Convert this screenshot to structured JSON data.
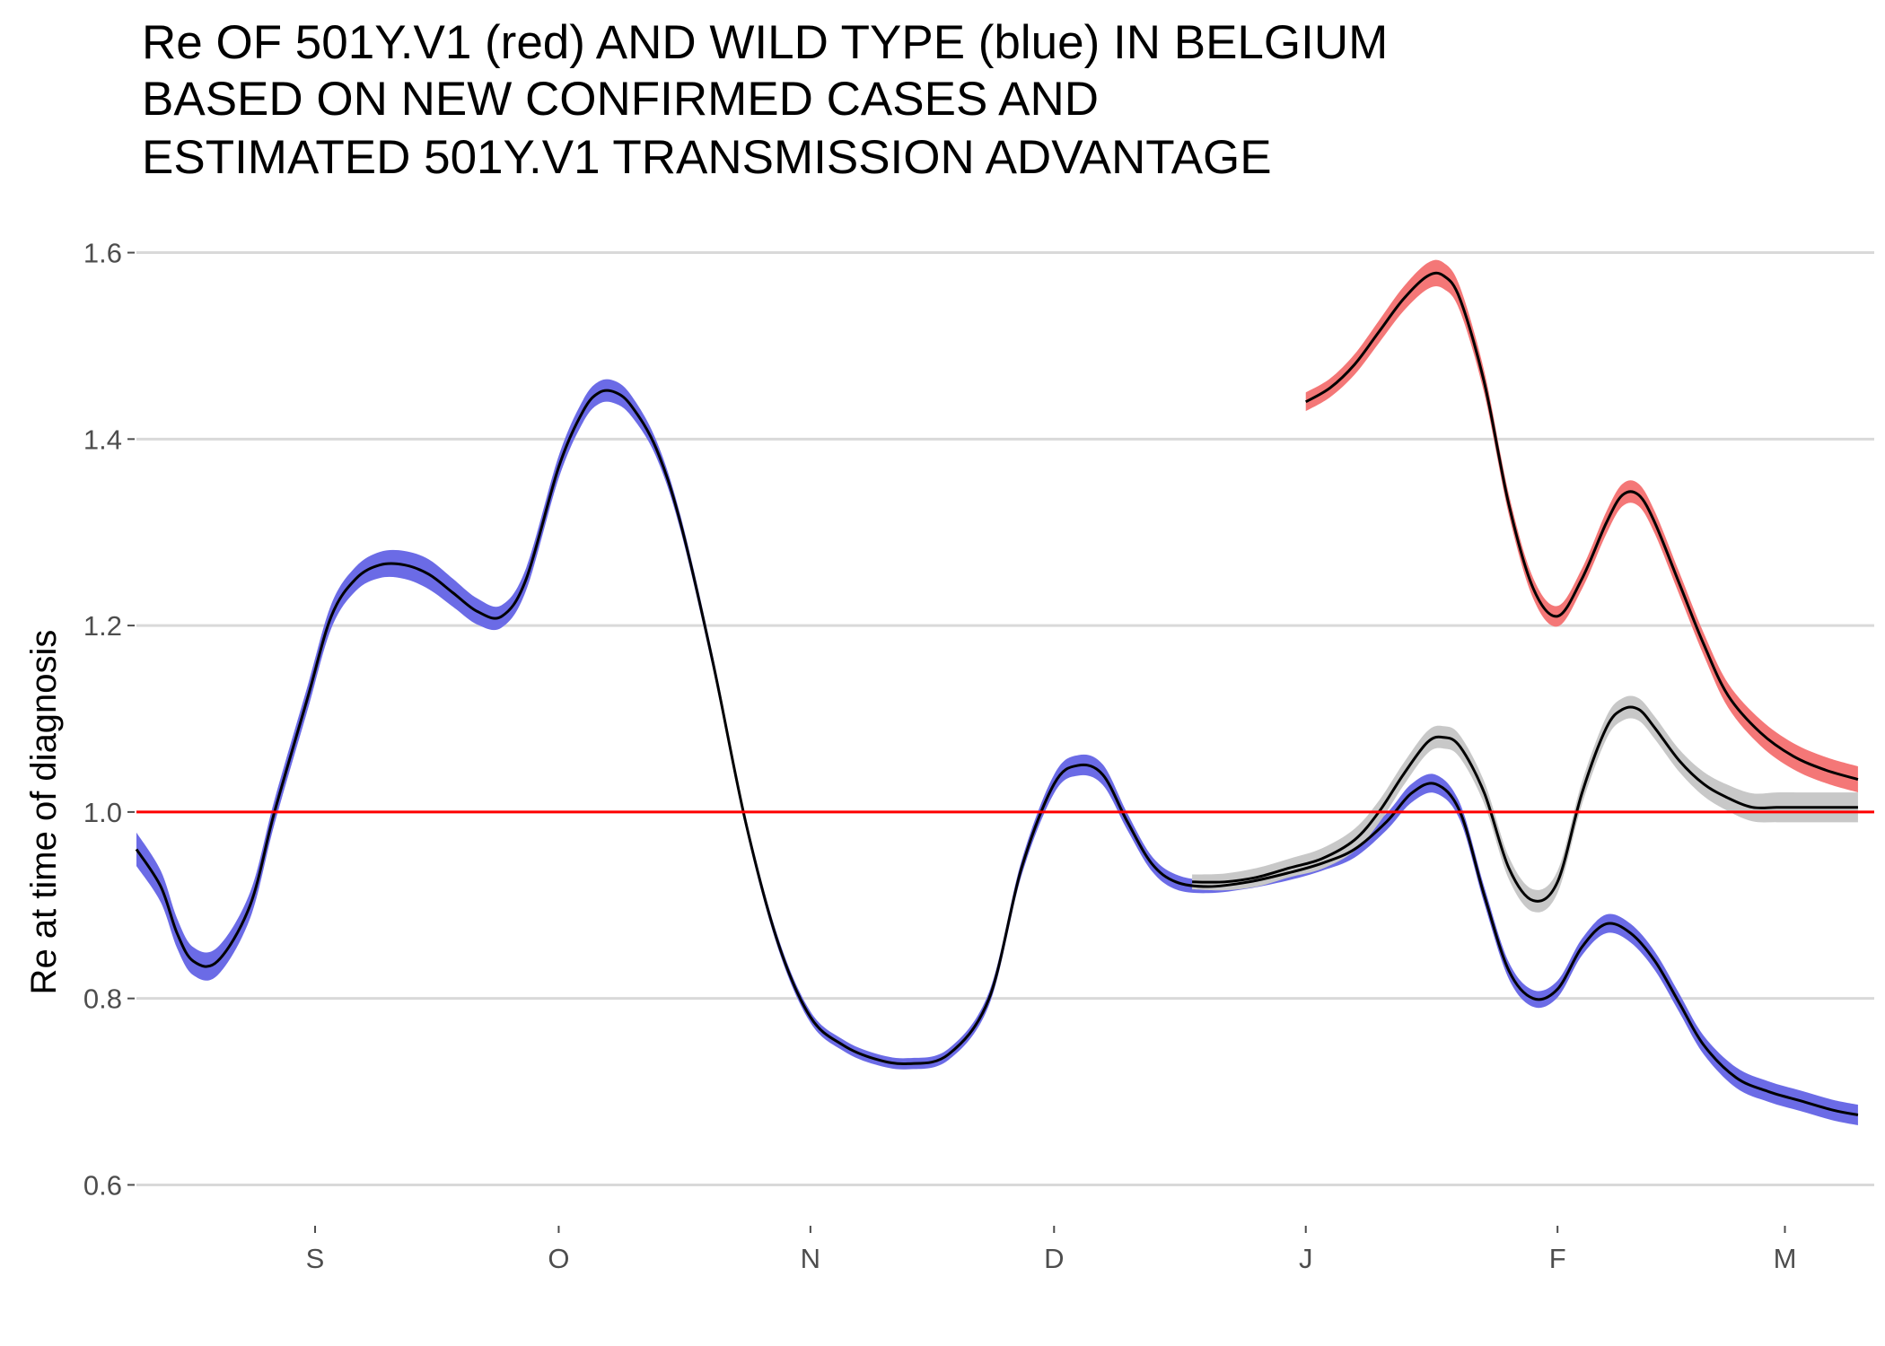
{
  "chart_data": {
    "type": "line",
    "title": [
      "Re OF 501Y.V1 (red) AND WILD TYPE (blue) IN BELGIUM",
      "BASED ON NEW CONFIRMED CASES AND",
      "ESTIMATED 501Y.V1 TRANSMISSION ADVANTAGE"
    ],
    "xlabel": "",
    "ylabel": "Re at time of diagnosis",
    "xlim": [
      "2020-08-10",
      "2021-03-12"
    ],
    "ylim": [
      0.56,
      1.64
    ],
    "x_ticks": [
      {
        "date": "2020-09-01",
        "label": "S"
      },
      {
        "date": "2020-10-01",
        "label": "O"
      },
      {
        "date": "2020-11-01",
        "label": "N"
      },
      {
        "date": "2020-12-01",
        "label": "D"
      },
      {
        "date": "2021-01-01",
        "label": "J"
      },
      {
        "date": "2021-02-01",
        "label": "F"
      },
      {
        "date": "2021-03-01",
        "label": "M"
      }
    ],
    "y_ticks": [
      0.6,
      0.8,
      1.0,
      1.2,
      1.4,
      1.6
    ],
    "y_tick_labels": [
      "0.6",
      "0.8",
      "1.0",
      "1.2",
      "1.4",
      "1.6"
    ],
    "grid": "horizontal major",
    "reference_line": {
      "y": 1.0,
      "color": "#ff0000"
    },
    "series": [
      {
        "color": "#0000dd",
        "band_color": "#6b6be6",
        "x": [
          "2020-08-10",
          "2020-08-13",
          "2020-08-15",
          "2020-08-17",
          "2020-08-20",
          "2020-08-24",
          "2020-08-27",
          "2020-08-31",
          "2020-09-03",
          "2020-09-06",
          "2020-09-09",
          "2020-09-12",
          "2020-09-15",
          "2020-09-18",
          "2020-09-21",
          "2020-09-24",
          "2020-09-27",
          "2020-10-01",
          "2020-10-04",
          "2020-10-06",
          "2020-10-08",
          "2020-10-10",
          "2020-10-13",
          "2020-10-16",
          "2020-10-20",
          "2020-10-24",
          "2020-10-28",
          "2020-11-01",
          "2020-11-05",
          "2020-11-09",
          "2020-11-13",
          "2020-11-18",
          "2020-11-23",
          "2020-11-27",
          "2020-12-01",
          "2020-12-04",
          "2020-12-07",
          "2020-12-10",
          "2020-12-13",
          "2020-12-16",
          "2020-12-20",
          "2020-12-25",
          "2020-12-30",
          "2021-01-03",
          "2021-01-07",
          "2021-01-11",
          "2021-01-14",
          "2021-01-17",
          "2021-01-20",
          "2021-01-23",
          "2021-01-26",
          "2021-01-29",
          "2021-02-01",
          "2021-02-04",
          "2021-02-07",
          "2021-02-10",
          "2021-02-13",
          "2021-02-16",
          "2021-02-19",
          "2021-02-23",
          "2021-02-27",
          "2021-03-03",
          "2021-03-07",
          "2021-03-10"
        ],
        "y": [
          0.96,
          0.92,
          0.87,
          0.84,
          0.84,
          0.9,
          1.0,
          1.12,
          1.21,
          1.25,
          1.265,
          1.265,
          1.255,
          1.235,
          1.215,
          1.21,
          1.25,
          1.37,
          1.43,
          1.45,
          1.45,
          1.435,
          1.39,
          1.31,
          1.16,
          0.99,
          0.86,
          0.78,
          0.75,
          0.735,
          0.73,
          0.74,
          0.8,
          0.94,
          1.03,
          1.05,
          1.04,
          0.99,
          0.945,
          0.925,
          0.92,
          0.925,
          0.935,
          0.945,
          0.96,
          0.99,
          1.02,
          1.03,
          1.0,
          0.91,
          0.83,
          0.8,
          0.81,
          0.855,
          0.88,
          0.87,
          0.84,
          0.795,
          0.75,
          0.715,
          0.7,
          0.69,
          0.68,
          0.675
        ],
        "band_halfwidth": [
          0.018,
          0.017,
          0.016,
          0.015,
          0.015,
          0.014,
          0.013,
          0.013,
          0.013,
          0.013,
          0.014,
          0.015,
          0.016,
          0.015,
          0.014,
          0.012,
          0.012,
          0.012,
          0.012,
          0.012,
          0.012,
          0.011,
          0.009,
          0.008,
          0.007,
          0.006,
          0.006,
          0.006,
          0.006,
          0.006,
          0.006,
          0.006,
          0.007,
          0.008,
          0.01,
          0.011,
          0.011,
          0.009,
          0.008,
          0.008,
          0.007,
          0.007,
          0.008,
          0.008,
          0.009,
          0.009,
          0.01,
          0.01,
          0.009,
          0.009,
          0.009,
          0.009,
          0.009,
          0.009,
          0.01,
          0.01,
          0.01,
          0.01,
          0.01,
          0.011,
          0.011,
          0.011,
          0.011,
          0.011
        ]
      },
      {
        "color": "#ee1111",
        "band_color": "#f47777",
        "x": [
          "2021-01-01",
          "2021-01-04",
          "2021-01-07",
          "2021-01-10",
          "2021-01-13",
          "2021-01-16",
          "2021-01-18",
          "2021-01-20",
          "2021-01-23",
          "2021-01-26",
          "2021-01-29",
          "2021-02-01",
          "2021-02-04",
          "2021-02-07",
          "2021-02-09",
          "2021-02-11",
          "2021-02-13",
          "2021-02-16",
          "2021-02-19",
          "2021-02-22",
          "2021-02-26",
          "2021-03-02",
          "2021-03-06",
          "2021-03-10"
        ],
        "y": [
          1.44,
          1.455,
          1.48,
          1.515,
          1.55,
          1.575,
          1.575,
          1.55,
          1.46,
          1.33,
          1.24,
          1.21,
          1.25,
          1.31,
          1.34,
          1.34,
          1.31,
          1.245,
          1.18,
          1.125,
          1.085,
          1.06,
          1.045,
          1.035
        ],
        "band_halfwidth": [
          0.01,
          0.01,
          0.011,
          0.012,
          0.013,
          0.014,
          0.014,
          0.013,
          0.012,
          0.011,
          0.011,
          0.011,
          0.011,
          0.012,
          0.012,
          0.012,
          0.012,
          0.012,
          0.012,
          0.013,
          0.014,
          0.014,
          0.014,
          0.014
        ]
      },
      {
        "color": "#000000",
        "band_color": "#c8c8c8",
        "x": [
          "2020-12-18",
          "2020-12-22",
          "2020-12-26",
          "2020-12-30",
          "2021-01-03",
          "2021-01-07",
          "2021-01-10",
          "2021-01-13",
          "2021-01-16",
          "2021-01-18",
          "2021-01-20",
          "2021-01-23",
          "2021-01-26",
          "2021-01-29",
          "2021-02-01",
          "2021-02-04",
          "2021-02-07",
          "2021-02-09",
          "2021-02-11",
          "2021-02-13",
          "2021-02-16",
          "2021-02-19",
          "2021-02-22",
          "2021-02-25",
          "2021-02-28",
          "2021-03-03",
          "2021-03-07",
          "2021-03-10"
        ],
        "y": [
          0.925,
          0.925,
          0.93,
          0.94,
          0.95,
          0.97,
          1.0,
          1.04,
          1.075,
          1.08,
          1.07,
          1.02,
          0.94,
          0.905,
          0.925,
          1.02,
          1.09,
          1.11,
          1.11,
          1.09,
          1.055,
          1.03,
          1.015,
          1.005,
          1.005,
          1.005,
          1.005,
          1.005
        ],
        "band_halfwidth": [
          0.008,
          0.009,
          0.01,
          0.01,
          0.011,
          0.012,
          0.012,
          0.012,
          0.012,
          0.012,
          0.012,
          0.012,
          0.012,
          0.012,
          0.012,
          0.012,
          0.012,
          0.012,
          0.012,
          0.012,
          0.012,
          0.013,
          0.014,
          0.015,
          0.016,
          0.016,
          0.016,
          0.016
        ]
      }
    ]
  }
}
